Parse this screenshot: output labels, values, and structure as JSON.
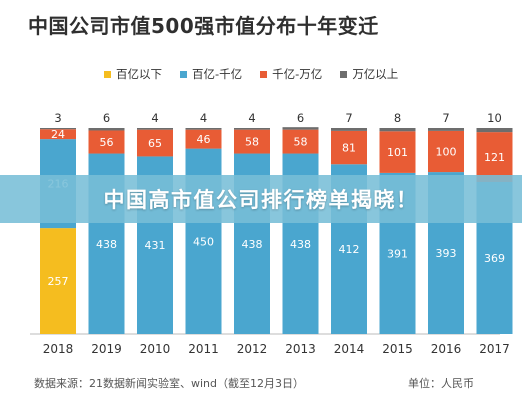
{
  "banner": {
    "text": "中国高市值公司排行榜单揭晓！"
  },
  "chart_data": {
    "type": "bar",
    "stacked": true,
    "title": "中国公司市值500强市值分布十年变迁",
    "categories": [
      "2018",
      "2019",
      "2010",
      "2011",
      "2012",
      "2013",
      "2014",
      "2015",
      "2016",
      "2017"
    ],
    "series": [
      {
        "name": "百亿以下",
        "color": "#f5bd1f",
        "values": [
          257,
          0,
          0,
          0,
          0,
          0,
          0,
          0,
          0,
          0
        ]
      },
      {
        "name": "百亿-千亿",
        "color": "#4aa6cf",
        "values": [
          216,
          438,
          431,
          450,
          438,
          438,
          412,
          391,
          393,
          369
        ]
      },
      {
        "name": "千亿-万亿",
        "color": "#e85c35",
        "values": [
          24,
          56,
          65,
          46,
          58,
          58,
          81,
          101,
          100,
          121
        ]
      },
      {
        "name": "万亿以上",
        "color": "#6d6d6d",
        "values": [
          3,
          6,
          4,
          4,
          4,
          6,
          7,
          8,
          7,
          10
        ]
      }
    ],
    "legend_position": "top",
    "grid": false,
    "source": "数据来源：21数据新闻实验室、wind（截至12月3日）",
    "unit": "单位：人民币"
  }
}
